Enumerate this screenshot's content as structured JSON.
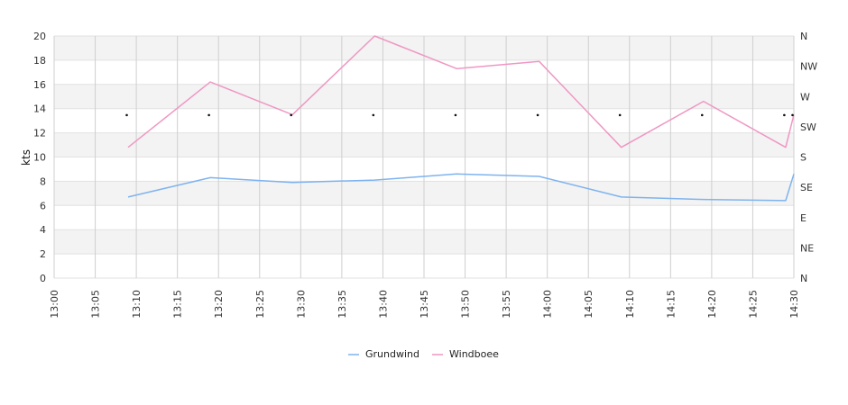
{
  "chart_data": {
    "type": "line",
    "title": "",
    "xlabel": "",
    "ylabel": "kts",
    "ylim": [
      0,
      20
    ],
    "y_ticks": [
      "0",
      "2",
      "4",
      "6",
      "8",
      "10",
      "12",
      "14",
      "16",
      "18",
      "20"
    ],
    "x_ticks": [
      "13:00",
      "13:05",
      "13:10",
      "13:15",
      "13:20",
      "13:25",
      "13:30",
      "13:35",
      "13:40",
      "13:45",
      "13:50",
      "13:55",
      "14:00",
      "14:05",
      "14:10",
      "14:15",
      "14:20",
      "14:25",
      "14:30"
    ],
    "xlim": [
      "13:00",
      "14:30"
    ],
    "direction_ticks": [
      "N",
      "NE",
      "E",
      "SE",
      "S",
      "SW",
      "W",
      "NW",
      "N"
    ],
    "grid": true,
    "legend_position": "bottom-center",
    "series": [
      {
        "name": "Grundwind",
        "color": "#7eb3ee",
        "x": [
          "13:09",
          "13:19",
          "13:29",
          "13:39",
          "13:49",
          "13:59",
          "14:09",
          "14:19",
          "14:29",
          "14:30"
        ],
        "values": [
          6.7,
          8.3,
          7.9,
          8.1,
          8.6,
          8.4,
          6.7,
          6.5,
          6.4,
          8.6
        ]
      },
      {
        "name": "Windboee",
        "color": "#ef97c3",
        "x": [
          "13:09",
          "13:19",
          "13:29",
          "13:39",
          "13:49",
          "13:59",
          "14:09",
          "14:19",
          "14:29",
          "14:30"
        ],
        "values": [
          10.8,
          16.2,
          13.5,
          20.0,
          17.3,
          17.9,
          10.8,
          14.6,
          10.8,
          13.5
        ]
      }
    ],
    "direction_markers": {
      "x": [
        "13:09",
        "13:19",
        "13:29",
        "13:39",
        "13:49",
        "13:59",
        "14:09",
        "14:19",
        "14:29",
        "14:30"
      ],
      "direction": [
        "SW",
        "SW",
        "SW",
        "SW",
        "SW",
        "SW",
        "SW",
        "SW",
        "SW",
        "SW"
      ]
    }
  }
}
